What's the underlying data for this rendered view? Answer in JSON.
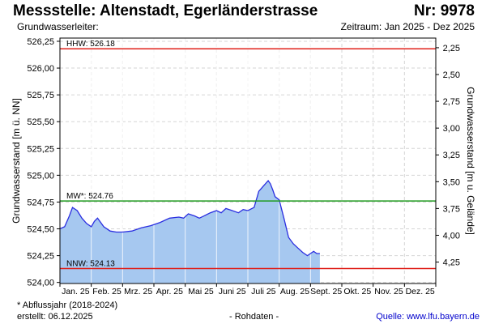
{
  "header": {
    "title": "Messstelle: Altenstadt, Egerländerstrasse",
    "number": "Nr: 9978",
    "aquifer": "Grundwasserleiter:",
    "period": "Zeitraum: Jan 2025 - Dez 2025"
  },
  "footer": {
    "note": "* Abflussjahr (2018-2024)",
    "created": "erstellt:  06.12.2025",
    "raw": "- Rohdaten -",
    "source": "Quelle: www.lfu.bayern.de"
  },
  "chart_data": {
    "type": "area",
    "ylabel": "Grundwasserstand [m ü. NN]",
    "y2label": "Grundwasserstand [m u. Gelände]",
    "ylim": [
      523.99,
      526.28
    ],
    "yticks": [
      524.0,
      524.25,
      524.5,
      524.75,
      525.0,
      525.25,
      525.5,
      525.75,
      526.0,
      526.25
    ],
    "ytick_labels": [
      "524,00",
      "524,25",
      "524,50",
      "524,75",
      "525,00",
      "525,25",
      "525,50",
      "525,75",
      "526,00",
      "526,25"
    ],
    "y2_ticks": [
      2.25,
      2.5,
      2.75,
      3.0,
      3.25,
      3.5,
      3.75,
      4.0,
      4.25
    ],
    "y2_tick_labels": [
      "2,25",
      "2,50",
      "2,75",
      "3,00",
      "3,25",
      "3,50",
      "3,75",
      "4,00",
      "4,25"
    ],
    "y2_reference": 528.44,
    "x_months": [
      "Jan. 25",
      "Feb. 25",
      "Mrz. 25",
      "Apr. 25",
      "Mai 25",
      "Juni 25",
      "Juli 25",
      "Aug. 25",
      "Sept. 25",
      "Okt. 25",
      "Nov. 25",
      "Dez. 25"
    ],
    "grid": true,
    "reference_lines": [
      {
        "label": "HHW: 526.18",
        "value": 526.18,
        "color": "#e0201a"
      },
      {
        "label": "MW*: 524.76",
        "value": 524.76,
        "color": "#1f9a1f"
      },
      {
        "label": "NNW: 524.13",
        "value": 524.13,
        "color": "#e0201a"
      }
    ],
    "series": [
      {
        "color": "#2a2ee0",
        "fill": "#a6c8f0",
        "x": [
          0,
          0.15,
          0.3,
          0.4,
          0.55,
          0.7,
          0.85,
          1.0,
          1.1,
          1.2,
          1.4,
          1.6,
          1.8,
          2.0,
          2.3,
          2.6,
          2.9,
          3.2,
          3.5,
          3.8,
          3.95,
          4.1,
          4.3,
          4.45,
          4.6,
          4.8,
          5.0,
          5.15,
          5.3,
          5.5,
          5.7,
          5.85,
          6.0,
          6.2,
          6.35,
          6.5,
          6.65,
          6.72,
          6.8,
          6.87,
          7.0,
          7.15,
          7.3,
          7.45,
          7.6,
          7.75,
          7.9,
          8.0,
          8.1,
          8.2,
          8.3
        ],
        "values": [
          524.5,
          524.52,
          524.62,
          524.7,
          524.67,
          524.6,
          524.55,
          524.52,
          524.57,
          524.6,
          524.52,
          524.48,
          524.47,
          524.47,
          524.48,
          524.51,
          524.53,
          524.56,
          524.6,
          524.61,
          524.6,
          524.64,
          524.62,
          524.6,
          524.62,
          524.65,
          524.67,
          524.65,
          524.69,
          524.67,
          524.65,
          524.68,
          524.67,
          524.7,
          524.85,
          524.9,
          524.95,
          524.92,
          524.86,
          524.8,
          524.77,
          524.6,
          524.42,
          524.36,
          524.32,
          524.28,
          524.25,
          524.27,
          524.29,
          524.27,
          524.27
        ]
      }
    ]
  }
}
